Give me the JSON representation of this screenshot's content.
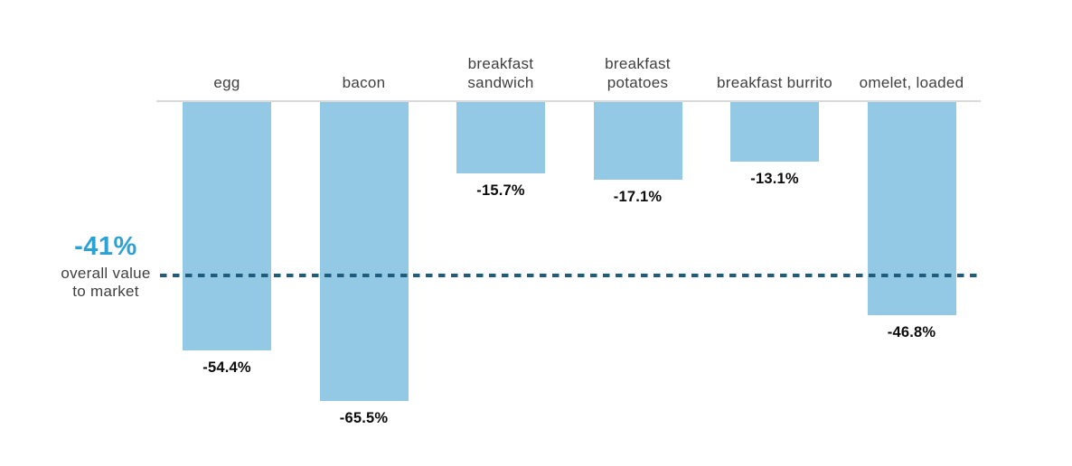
{
  "chart_data": {
    "type": "bar",
    "title": "",
    "orientation": "vertical",
    "baseline_value": 0,
    "ylim": [
      -70,
      0
    ],
    "grid": false,
    "legend": "none",
    "categories": [
      "egg",
      "bacon",
      "breakfast sandwich",
      "breakfast potatoes",
      "breakfast burrito",
      "omelet, loaded"
    ],
    "category_label_lines": [
      [
        "egg"
      ],
      [
        "bacon"
      ],
      [
        "breakfast",
        "sandwich"
      ],
      [
        "breakfast",
        "potatoes"
      ],
      [
        "breakfast burrito"
      ],
      [
        "omelet, loaded"
      ]
    ],
    "values": [
      -54.4,
      -65.5,
      -15.7,
      -17.1,
      -13.1,
      -46.8
    ],
    "value_labels": [
      "-54.4%",
      "-65.5%",
      "-15.7%",
      "-17.1%",
      "-13.1%",
      "-46.8%"
    ],
    "reference_line": {
      "value": -41,
      "value_label": "-41%",
      "label_line1": "overall value",
      "label_line2": "to market",
      "style": "dashed"
    }
  },
  "colors": {
    "bar_fill": "#93c9e4",
    "reference_line": "#1e5d7d",
    "reference_value_text": "#2ba2d4",
    "category_label": "#3f3f3f",
    "value_label": "#0c0c0c",
    "baseline": "#d9d9d9",
    "background": "#ffffff"
  }
}
